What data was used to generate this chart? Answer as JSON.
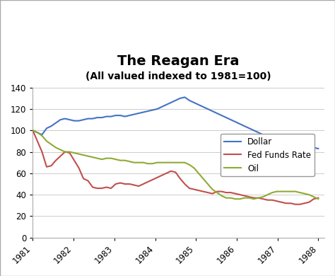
{
  "title": "The Reagan Era",
  "subtitle": "(All valued indexed to 1981=100)",
  "title_fontsize": 14,
  "subtitle_fontsize": 10,
  "ylim": [
    0,
    140
  ],
  "yticks": [
    0,
    20,
    40,
    60,
    80,
    100,
    120,
    140
  ],
  "xtick_labels": [
    "1981",
    "1982",
    "1983",
    "1984",
    "1985",
    "1986",
    "1987",
    "1988"
  ],
  "background_color": "#ffffff",
  "grid_color": "#cccccc",
  "dollar_color": "#4472c4",
  "fed_color": "#c0504d",
  "oil_color": "#8faa35",
  "dollar_label": "Dollar",
  "fed_label": "Fed Funds Rate",
  "oil_label": "Oil",
  "dollar": [
    100,
    98,
    96,
    102,
    104,
    107,
    110,
    111,
    110,
    109,
    109,
    110,
    111,
    111,
    112,
    112,
    113,
    113,
    114,
    114,
    113,
    114,
    115,
    116,
    117,
    118,
    119,
    120,
    122,
    124,
    126,
    128,
    130,
    131,
    128,
    126,
    124,
    122,
    120,
    118,
    116,
    114,
    112,
    110,
    108,
    106,
    104,
    102,
    100,
    98,
    96,
    94,
    92,
    90,
    88,
    88,
    89,
    90,
    87,
    88,
    86,
    84,
    83
  ],
  "fed": [
    100,
    90,
    80,
    66,
    67,
    72,
    76,
    80,
    79,
    72,
    65,
    55,
    53,
    47,
    46,
    46,
    47,
    46,
    50,
    51,
    50,
    50,
    49,
    48,
    50,
    52,
    54,
    56,
    58,
    60,
    62,
    61,
    55,
    50,
    46,
    45,
    44,
    43,
    42,
    41,
    43,
    43,
    42,
    42,
    41,
    40,
    39,
    38,
    37,
    37,
    36,
    35,
    35,
    34,
    33,
    32,
    32,
    31,
    31,
    32,
    33,
    36,
    37
  ],
  "oil": [
    100,
    98,
    95,
    90,
    87,
    84,
    82,
    80,
    80,
    79,
    78,
    77,
    76,
    75,
    74,
    73,
    74,
    74,
    73,
    72,
    72,
    71,
    70,
    70,
    70,
    69,
    69,
    70,
    70,
    70,
    70,
    70,
    70,
    70,
    68,
    65,
    60,
    55,
    50,
    45,
    42,
    39,
    37,
    37,
    36,
    36,
    37,
    37,
    36,
    37,
    38,
    40,
    42,
    43,
    43,
    43,
    43,
    43,
    42,
    41,
    40,
    38,
    36
  ]
}
